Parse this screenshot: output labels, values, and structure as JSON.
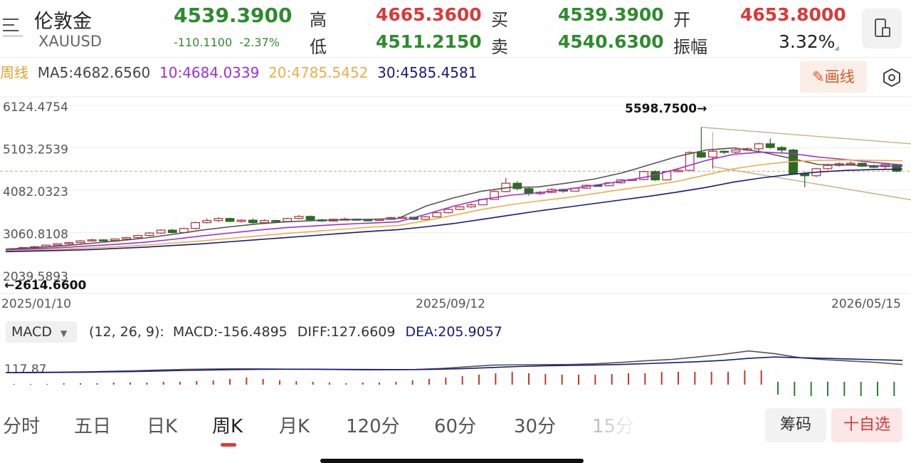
{
  "header": {
    "title": "伦敦金",
    "symbol": "XAUUSD",
    "price": "4539.3900",
    "change": "-110.1100",
    "change_pct": "-2.37%",
    "high_label": "高",
    "high_value": "4665.3600",
    "low_label": "低",
    "low_value": "4511.2150",
    "buy_label": "买",
    "buy_value": "4539.3900",
    "sell_label": "卖",
    "sell_value": "4540.6300",
    "open_label": "开",
    "open_value": "4653.8000",
    "amp_label": "振幅",
    "amp_value": "3.32%",
    "colors": {
      "up": "#d83a3a",
      "down": "#2e8b2e"
    }
  },
  "ma_row": {
    "period": "周线",
    "ma5": "MA5:4682.6560",
    "ma10": "10:4684.0339",
    "ma20": "20:4785.5452",
    "ma30": "30:4585.4581",
    "colors": {
      "ma5": "#555555",
      "ma10": "#9b30d9",
      "ma20": "#e8b04a",
      "ma30": "#1a1a7a"
    }
  },
  "toolbar": {
    "draw_label": "画线",
    "draw_icon": "pencil-icon",
    "settings_icon": "hexagon-settings-icon",
    "menu_icon": "menu-icon",
    "device_icon": "phone-switch-icon"
  },
  "chart_data": {
    "type": "candlestick",
    "y_ticks": [
      "6124.4754",
      "5103.2539",
      "4082.0323",
      "3060.8108",
      "2039.5893"
    ],
    "ylim": [
      2039.5893,
      6124.4754
    ],
    "x_ticks": [
      "2025/01/10",
      "2025/09/12",
      "2026/05/15"
    ],
    "max_annotation": "5598.7500→",
    "min_annotation": "←2614.6600",
    "current_price": 4539.39,
    "candles": [
      [
        2640,
        2668,
        2690,
        2614.66
      ],
      [
        2668,
        2700,
        2710,
        2640
      ],
      [
        2700,
        2720,
        2740,
        2680
      ],
      [
        2720,
        2758,
        2770,
        2700
      ],
      [
        2758,
        2790,
        2800,
        2740
      ],
      [
        2790,
        2820,
        2840,
        2770
      ],
      [
        2820,
        2860,
        2880,
        2800
      ],
      [
        2860,
        2885,
        2910,
        2840
      ],
      [
        2885,
        2870,
        2900,
        2850
      ],
      [
        2870,
        2905,
        2920,
        2860
      ],
      [
        2905,
        2940,
        2960,
        2890
      ],
      [
        2940,
        2990,
        3010,
        2920
      ],
      [
        2990,
        3050,
        3070,
        2970
      ],
      [
        3050,
        3120,
        3140,
        3030
      ],
      [
        3120,
        3060,
        3150,
        3040
      ],
      [
        3060,
        3160,
        3180,
        3040
      ],
      [
        3160,
        3300,
        3320,
        3140
      ],
      [
        3300,
        3350,
        3400,
        3280
      ],
      [
        3350,
        3400,
        3430,
        3320
      ],
      [
        3400,
        3330,
        3420,
        3310
      ],
      [
        3330,
        3360,
        3380,
        3300
      ],
      [
        3360,
        3300,
        3400,
        3250
      ],
      [
        3300,
        3350,
        3380,
        3290
      ],
      [
        3350,
        3330,
        3370,
        3310
      ],
      [
        3330,
        3400,
        3420,
        3320
      ],
      [
        3400,
        3450,
        3480,
        3380
      ],
      [
        3450,
        3370,
        3470,
        3350
      ],
      [
        3370,
        3340,
        3390,
        3320
      ],
      [
        3340,
        3380,
        3400,
        3330
      ],
      [
        3380,
        3385,
        3420,
        3360
      ],
      [
        3385,
        3370,
        3400,
        3350
      ],
      [
        3370,
        3365,
        3390,
        3340
      ],
      [
        3365,
        3380,
        3400,
        3350
      ],
      [
        3380,
        3420,
        3440,
        3370
      ],
      [
        3420,
        3430,
        3450,
        3400
      ],
      [
        3430,
        3380,
        3440,
        3360
      ],
      [
        3380,
        3440,
        3460,
        3370
      ],
      [
        3440,
        3540,
        3560,
        3430
      ],
      [
        3540,
        3620,
        3650,
        3520
      ],
      [
        3620,
        3680,
        3700,
        3600
      ],
      [
        3680,
        3730,
        3760,
        3660
      ],
      [
        3730,
        3860,
        3880,
        3720
      ],
      [
        3860,
        4050,
        4080,
        3850
      ],
      [
        4050,
        4250,
        4380,
        4030
      ],
      [
        4250,
        4120,
        4300,
        4080
      ],
      [
        4120,
        4000,
        4150,
        3950
      ],
      [
        4000,
        4030,
        4060,
        3960
      ],
      [
        4030,
        4100,
        4130,
        4010
      ],
      [
        4100,
        4060,
        4120,
        4020
      ],
      [
        4060,
        4130,
        4150,
        4050
      ],
      [
        4130,
        4200,
        4220,
        4110
      ],
      [
        4200,
        4190,
        4230,
        4170
      ],
      [
        4190,
        4260,
        4280,
        4180
      ],
      [
        4260,
        4330,
        4350,
        4240
      ],
      [
        4330,
        4340,
        4360,
        4310
      ],
      [
        4340,
        4530,
        4550,
        4320
      ],
      [
        4530,
        4330,
        4560,
        4300
      ],
      [
        4330,
        4530,
        4550,
        4320
      ],
      [
        4530,
        4560,
        4580,
        4510
      ],
      [
        4560,
        4990,
        5020,
        4550
      ],
      [
        4990,
        4880,
        5598.75,
        4850
      ],
      [
        4880,
        5020,
        5050,
        4600
      ],
      [
        5020,
        5000,
        5040,
        4950
      ],
      [
        5000,
        5050,
        5080,
        4970
      ],
      [
        5050,
        5080,
        5110,
        5020
      ],
      [
        5080,
        5200,
        5230,
        4990
      ],
      [
        5200,
        5110,
        5330,
        5080
      ],
      [
        5110,
        5050,
        5150,
        4990
      ],
      [
        5050,
        4480,
        5080,
        4460
      ],
      [
        4480,
        4430,
        4520,
        4150
      ],
      [
        4430,
        4600,
        4620,
        4400
      ],
      [
        4600,
        4680,
        4720,
        4570
      ],
      [
        4680,
        4720,
        4750,
        4650
      ],
      [
        4720,
        4730,
        4780,
        4700
      ],
      [
        4730,
        4660,
        4750,
        4640
      ],
      [
        4660,
        4650,
        4700,
        4610
      ],
      [
        4650,
        4700,
        4720,
        4590
      ],
      [
        4700,
        4540,
        4720,
        4511
      ]
    ],
    "ma_lines": {
      "ma5": [
        2660,
        2700,
        2740,
        2800,
        2860,
        2930,
        3020,
        3120,
        3200,
        3270,
        3320,
        3350,
        3370,
        3380,
        3400,
        3700,
        3900,
        4060,
        4150,
        4160,
        4250,
        4350,
        4500,
        4700,
        4900,
        5050,
        5100,
        5000,
        4850,
        4700,
        4690,
        4670,
        4660
      ],
      "ma10": [
        2640,
        2670,
        2700,
        2740,
        2780,
        2830,
        2900,
        2980,
        3050,
        3120,
        3180,
        3220,
        3260,
        3290,
        3320,
        3500,
        3700,
        3860,
        3960,
        4020,
        4100,
        4200,
        4300,
        4420,
        4600,
        4800,
        4950,
        5000,
        4970,
        4880,
        4820,
        4750,
        4690
      ],
      "ma20": [
        2620,
        2640,
        2660,
        2690,
        2720,
        2760,
        2810,
        2860,
        2920,
        2980,
        3040,
        3090,
        3140,
        3190,
        3230,
        3350,
        3480,
        3620,
        3730,
        3820,
        3900,
        4000,
        4100,
        4190,
        4300,
        4450,
        4600,
        4700,
        4770,
        4800,
        4810,
        4800,
        4790
      ],
      "ma30": [
        2600,
        2615,
        2630,
        2650,
        2680,
        2710,
        2750,
        2790,
        2840,
        2890,
        2940,
        2990,
        3040,
        3090,
        3130,
        3200,
        3280,
        3380,
        3480,
        3580,
        3670,
        3760,
        3850,
        3940,
        4040,
        4150,
        4280,
        4380,
        4460,
        4520,
        4560,
        4580,
        4590
      ]
    },
    "macd": {
      "label": "MACD",
      "params": "(12, 26, 9):",
      "macd": "MACD:-156.4895",
      "diff": "DIFF:127.6609",
      "dea": "DEA:205.9057",
      "scale_label": "117.87",
      "diff_line": [
        10,
        12,
        16,
        20,
        28,
        36,
        48,
        58,
        62,
        66,
        64,
        60,
        58,
        54,
        50,
        52,
        56,
        70,
        95,
        120,
        125,
        128,
        130,
        140,
        160,
        185,
        205,
        240,
        280,
        330,
        290,
        230,
        200,
        180,
        160,
        130
      ],
      "dea_line": [
        8,
        10,
        12,
        15,
        20,
        26,
        34,
        42,
        48,
        54,
        58,
        60,
        60,
        58,
        56,
        55,
        55,
        60,
        70,
        85,
        100,
        110,
        116,
        122,
        130,
        142,
        156,
        170,
        190,
        220,
        240,
        230,
        220,
        210,
        200,
        190
      ],
      "bars": [
        1,
        1,
        1,
        2,
        2,
        2,
        3,
        3,
        3,
        4,
        4,
        5,
        6,
        8,
        10,
        8,
        6,
        5,
        4,
        3,
        2,
        3,
        3,
        4,
        6,
        8,
        10,
        12,
        14,
        16,
        18,
        16,
        15,
        14,
        14,
        14,
        15,
        16,
        16,
        18,
        18,
        18,
        18,
        18,
        20,
        20,
        -18,
        -20,
        -20,
        -20,
        -20,
        -20,
        -20,
        -20
      ],
      "colors": {
        "diff": "#555555",
        "dea": "#1a1a7a",
        "up": "#c0392b",
        "down": "#2e7d32"
      }
    }
  },
  "tabs": {
    "items": [
      "分时",
      "五日",
      "日K",
      "周K",
      "月K",
      "120分",
      "60分",
      "30分",
      "15分"
    ],
    "active": 3,
    "chips_label": "筹码",
    "watch_label": "十自选"
  }
}
